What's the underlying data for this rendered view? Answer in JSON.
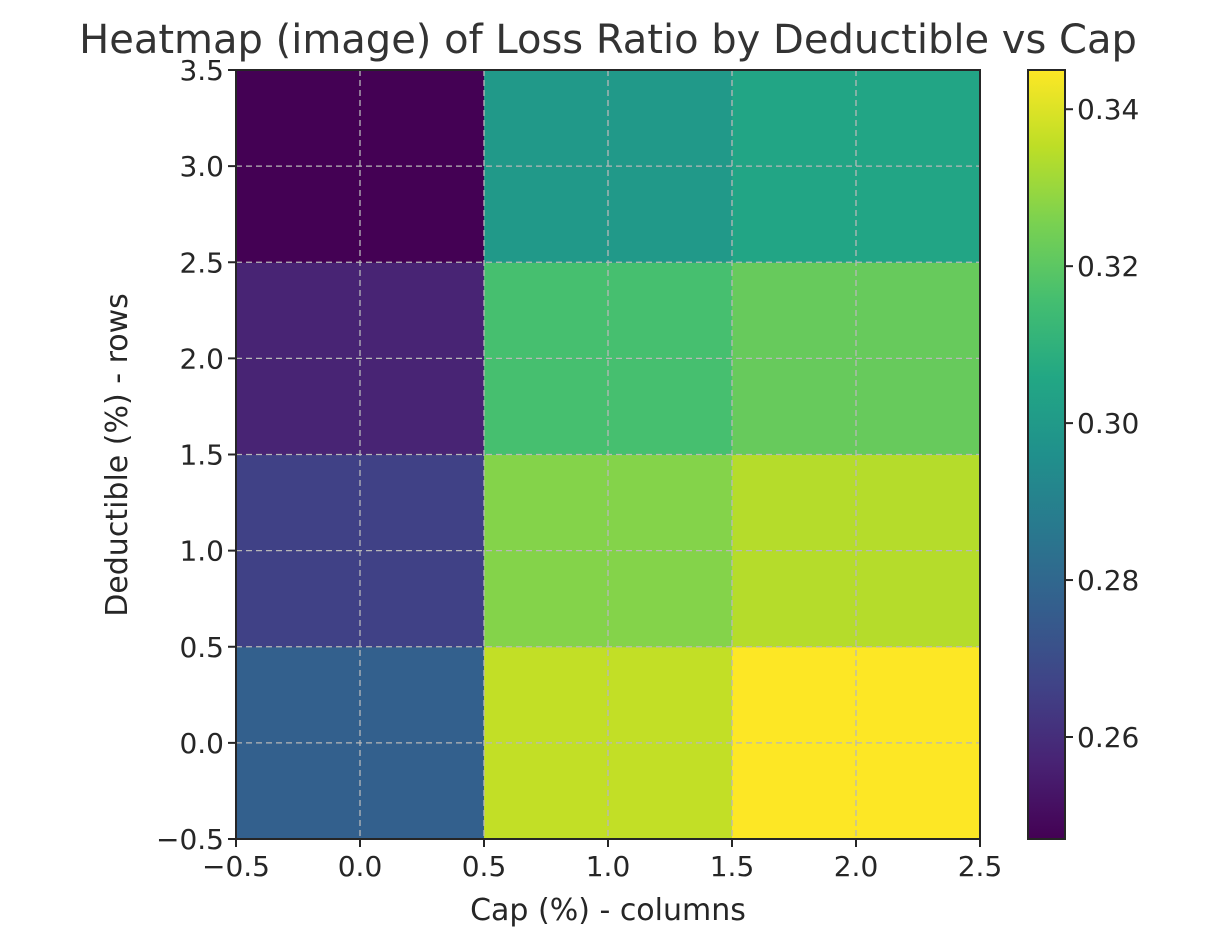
{
  "chart_data": {
    "type": "heatmap",
    "title": "Heatmap (image) of Loss Ratio by Deductible vs Cap",
    "xlabel": "Cap (%) - columns",
    "ylabel": "Deductible (%) - rows",
    "xlim": [
      -0.5,
      2.5
    ],
    "ylim": [
      -0.5,
      3.5
    ],
    "x_ticks": [
      -0.5,
      0.0,
      0.5,
      1.0,
      1.5,
      2.0,
      2.5
    ],
    "x_tick_labels": [
      "−0.5",
      "0.0",
      "0.5",
      "1.0",
      "1.5",
      "2.0",
      "2.5"
    ],
    "y_ticks": [
      -0.5,
      0.0,
      0.5,
      1.0,
      1.5,
      2.0,
      2.5,
      3.0,
      3.5
    ],
    "y_tick_labels": [
      "−0.5",
      "0.0",
      "0.5",
      "1.0",
      "1.5",
      "2.0",
      "2.5",
      "3.0",
      "3.5"
    ],
    "grid": true,
    "colormap": "viridis",
    "colorbar": {
      "vmin": 0.247,
      "vmax": 0.345,
      "ticks": [
        0.26,
        0.28,
        0.3,
        0.32,
        0.34
      ],
      "tick_labels": [
        "0.26",
        "0.28",
        "0.30",
        "0.32",
        "0.34"
      ]
    },
    "cells": [
      {
        "row": 0,
        "col": 0,
        "value": 0.277
      },
      {
        "row": 0,
        "col": 1,
        "value": 0.336
      },
      {
        "row": 0,
        "col": 2,
        "value": 0.345
      },
      {
        "row": 1,
        "col": 0,
        "value": 0.266
      },
      {
        "row": 1,
        "col": 1,
        "value": 0.327
      },
      {
        "row": 1,
        "col": 2,
        "value": 0.334
      },
      {
        "row": 2,
        "col": 0,
        "value": 0.257
      },
      {
        "row": 2,
        "col": 1,
        "value": 0.316
      },
      {
        "row": 2,
        "col": 2,
        "value": 0.322
      },
      {
        "row": 3,
        "col": 0,
        "value": 0.247
      },
      {
        "row": 3,
        "col": 1,
        "value": 0.3
      },
      {
        "row": 3,
        "col": 2,
        "value": 0.305
      }
    ]
  }
}
